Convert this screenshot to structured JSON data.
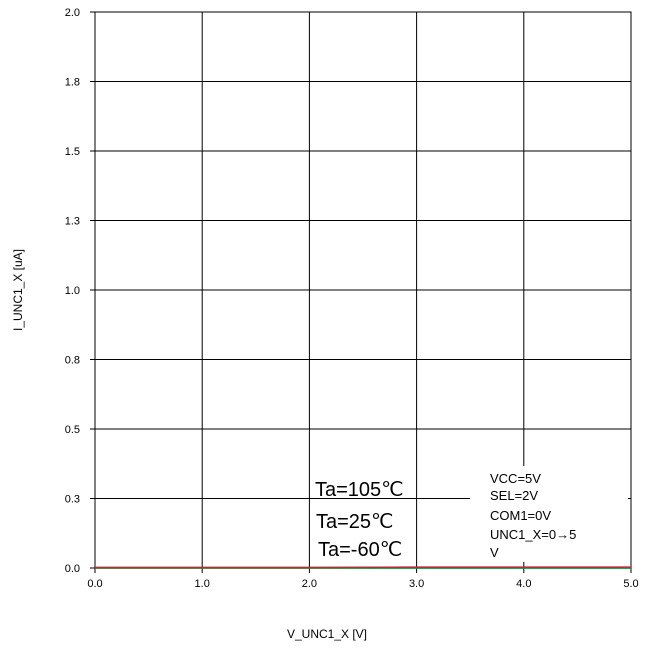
{
  "chart_data": {
    "type": "line",
    "title": "",
    "xlabel": "V_UNC1_X [V]",
    "ylabel": "I_UNC1_X [uA]",
    "xlim": [
      0,
      5
    ],
    "ylim": [
      0,
      2
    ],
    "x_ticks": [
      0,
      1,
      2,
      3,
      4,
      5
    ],
    "x_tick_labels": [
      "0.0",
      "1.0",
      "2.0",
      "3.0",
      "4.0",
      "5.0"
    ],
    "y_ticks": [
      0,
      0.25,
      0.5,
      0.75,
      1.0,
      1.25,
      1.5,
      1.75,
      2.0
    ],
    "y_tick_labels": [
      "0.0",
      "0.3",
      "0.5",
      "0.8",
      "1.0",
      "1.3",
      "1.5",
      "1.8",
      "2.0"
    ],
    "grid": true,
    "series": [
      {
        "color": "#1f3fbf",
        "x": [
          0,
          1,
          2,
          3,
          4,
          5
        ],
        "y": [
          0.0,
          0.0,
          0.0,
          0.0,
          0.0,
          0.0
        ]
      },
      {
        "color": "#2e8b3a",
        "x": [
          0,
          1,
          2,
          3,
          4,
          5
        ],
        "y": [
          0.0,
          0.0,
          0.0,
          0.0,
          0.0,
          0.0
        ]
      },
      {
        "color": "#d62020",
        "x": [
          0,
          1,
          2,
          3,
          4,
          5
        ],
        "y": [
          0.002,
          0.002,
          0.002,
          0.003,
          0.003,
          0.003
        ]
      }
    ],
    "annotations": {
      "temps": [
        "Ta=105℃",
        "Ta=25℃",
        "Ta=-60℃"
      ],
      "conditions": [
        "VCC=5V",
        "SEL=2V",
        "COM1=0V",
        "UNC1_X=0→5",
        "V"
      ]
    }
  }
}
